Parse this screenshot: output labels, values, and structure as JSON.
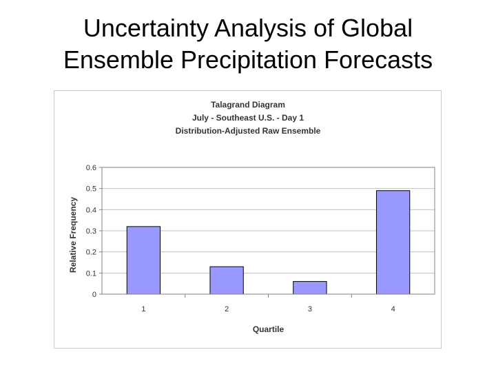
{
  "slide": {
    "title_line1": "Uncertainty Analysis of Global",
    "title_line2": "Ensemble Precipitation Forecasts"
  },
  "chart_data": {
    "type": "bar",
    "title_lines": [
      "Talagrand Diagram",
      "July - Southeast U.S. - Day 1",
      "Distribution-Adjusted Raw Ensemble"
    ],
    "categories": [
      "1",
      "2",
      "3",
      "4"
    ],
    "values": [
      0.32,
      0.13,
      0.06,
      0.49
    ],
    "xlabel": "Quartile",
    "ylabel": "Relative Frequency",
    "ylim": [
      0,
      0.6
    ],
    "yticks": [
      "0",
      "0.1",
      "0.2",
      "0.3",
      "0.4",
      "0.5",
      "0.6"
    ],
    "grid": true,
    "legend": "none",
    "bar_color": "#9999ff",
    "bar_edge_color": "#000000",
    "grid_color": "#c0c0c0",
    "plot_border_color": "#808080"
  }
}
